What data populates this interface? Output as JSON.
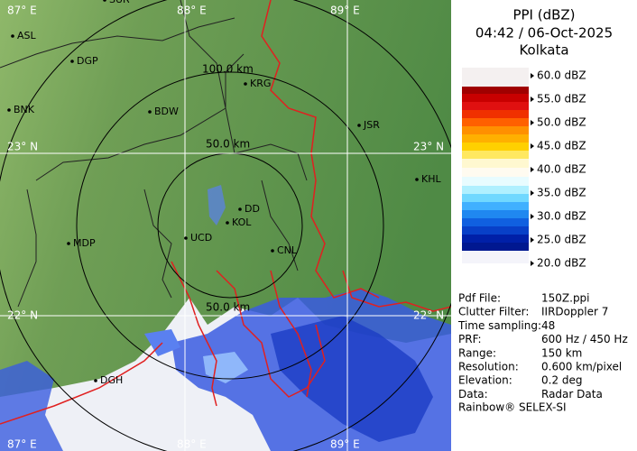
{
  "header": {
    "title": "PPI (dBZ)",
    "time": "04:42 / 06-Oct-2025",
    "station": "Kolkata"
  },
  "legend": {
    "labels": [
      "60.0 dBZ",
      "55.0 dBZ",
      "50.0 dBZ",
      "45.0 dBZ",
      "40.0 dBZ",
      "35.0 dBZ",
      "30.0 dBZ",
      "25.0 dBZ",
      "20.0 dBZ"
    ]
  },
  "info": {
    "rows": [
      [
        "Pdf File:",
        "150Z.ppi"
      ],
      [
        "Clutter Filter:",
        "IIRDoppler 7"
      ],
      [
        "Time sampling:",
        "48"
      ],
      [
        "PRF:",
        "600 Hz / 450 Hz"
      ],
      [
        "Range:",
        "150 km"
      ],
      [
        "Resolution:",
        "0.600 km/pixel"
      ],
      [
        "Elevation:",
        "0.2 deg"
      ],
      [
        "Data:",
        "Radar Data"
      ]
    ],
    "footer": "Rainbow® SELEX-SI"
  },
  "map": {
    "grid_labels": [
      "87° E",
      "88° E",
      "89° E",
      "23° N",
      "23° N",
      "22° N",
      "22° N",
      "87° E",
      "88° E",
      "89° E"
    ],
    "range_labels": [
      "100.0 km",
      "50.0 km",
      "50.0 km"
    ],
    "cities": [
      "ASL",
      "DGP",
      "BNK",
      "BDW",
      "KRG",
      "JSR",
      "KHL",
      "MDP",
      "DD",
      "KOL",
      "UCD",
      "CNL",
      "DGH",
      "SUR"
    ]
  }
}
